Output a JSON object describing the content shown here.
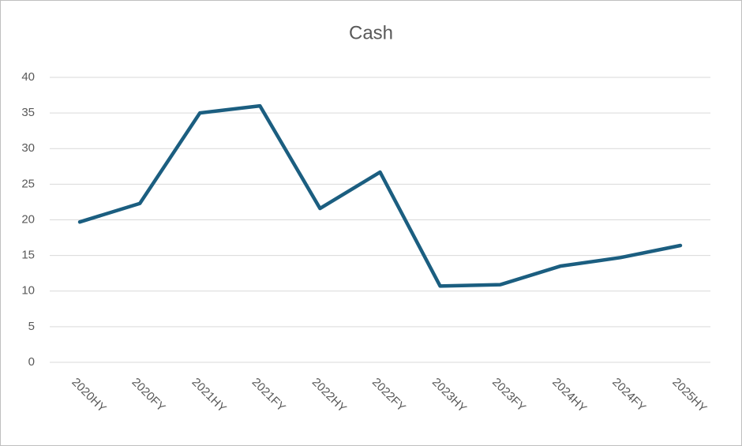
{
  "chart_data": {
    "type": "line",
    "title": "Cash",
    "categories": [
      "2020HY",
      "2020FY",
      "2021HY",
      "2021FY",
      "2022HY",
      "2022FY",
      "2023HY",
      "2023FY",
      "2024HY",
      "2024FY",
      "2025HY"
    ],
    "series": [
      {
        "name": "Cash",
        "color": "#1b5e80",
        "values": [
          19.7,
          22.3,
          35.0,
          36.0,
          21.6,
          26.7,
          10.7,
          10.9,
          13.5,
          14.7,
          16.4
        ]
      }
    ],
    "ylim": [
      0,
      40
    ],
    "yticks": [
      0,
      5,
      10,
      15,
      20,
      25,
      30,
      35,
      40
    ],
    "grid": true,
    "legend": false
  }
}
